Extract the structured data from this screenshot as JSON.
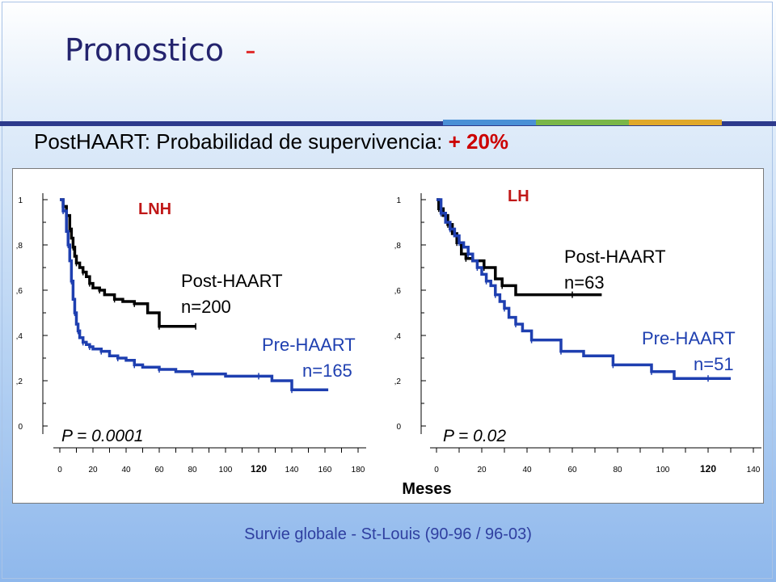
{
  "slide": {
    "title": "Pronostico",
    "title_dash": "-",
    "subtitle_main": "PostHAART: Probabilidad de supervivencia: ",
    "subtitle_highlight": "+ 20%",
    "caption": "Survie globale - St-Louis (90-96 / 96-03)",
    "xlabel": "Meses",
    "colors": {
      "title": "#24246e",
      "rule": "#2d3a8c",
      "accents": [
        "#4a90d6",
        "#7ab648",
        "#e0a82a"
      ],
      "post_haart": "#000000",
      "pre_haart": "#1e3fb0",
      "panel_label": "#c01818",
      "caption": "#2f3fa0"
    }
  },
  "chart_data": [
    {
      "type": "line",
      "step": true,
      "panel_label": "LNH",
      "p_value": "P = 0.0001",
      "xlabel": "Meses",
      "ylabel": "",
      "xlim": [
        0,
        180
      ],
      "ylim": [
        0,
        1
      ],
      "x_ticks": [
        "0",
        "20",
        "40",
        "60",
        "80",
        "100",
        "120",
        "140",
        "160",
        "180"
      ],
      "y_ticks": [
        "0",
        ",2",
        ",4",
        ",6",
        ",8",
        "1"
      ],
      "series": [
        {
          "name": "Post-HAART",
          "label_lines": [
            "Post-HAART",
            "n=200"
          ],
          "color": "#000000",
          "x": [
            0,
            2,
            4,
            6,
            7,
            8,
            9,
            10,
            12,
            14,
            16,
            18,
            20,
            24,
            27,
            33,
            38,
            45,
            53,
            60,
            70,
            82
          ],
          "y": [
            1,
            0.97,
            0.93,
            0.87,
            0.83,
            0.79,
            0.75,
            0.72,
            0.7,
            0.68,
            0.66,
            0.63,
            0.61,
            0.6,
            0.58,
            0.56,
            0.55,
            0.54,
            0.5,
            0.44,
            0.44,
            0.44
          ]
        },
        {
          "name": "Pre-HAART",
          "label_lines": [
            "Pre-HAART",
            "n=165"
          ],
          "color": "#1e3fb0",
          "x": [
            0,
            2,
            4,
            5,
            6,
            7,
            8,
            9,
            10,
            11,
            12,
            14,
            16,
            18,
            20,
            25,
            30,
            35,
            40,
            45,
            50,
            60,
            70,
            80,
            100,
            120,
            128,
            140,
            162
          ],
          "y": [
            1,
            0.95,
            0.86,
            0.8,
            0.73,
            0.64,
            0.56,
            0.5,
            0.45,
            0.42,
            0.39,
            0.37,
            0.36,
            0.35,
            0.34,
            0.33,
            0.31,
            0.3,
            0.29,
            0.27,
            0.26,
            0.25,
            0.24,
            0.23,
            0.22,
            0.22,
            0.2,
            0.16,
            0.16
          ]
        }
      ]
    },
    {
      "type": "line",
      "step": true,
      "panel_label": "LH",
      "p_value": "P = 0.02",
      "xlabel": "Meses",
      "ylabel": "",
      "xlim": [
        0,
        140
      ],
      "ylim": [
        0,
        1
      ],
      "x_ticks": [
        "0",
        "20",
        "40",
        "60",
        "80",
        "100",
        "120",
        "140"
      ],
      "y_ticks": [
        "0",
        ",2",
        ",4",
        ",6",
        ",8",
        "1"
      ],
      "series": [
        {
          "name": "Post-HAART",
          "label_lines": [
            "Post-HAART",
            "n=63"
          ],
          "color": "#000000",
          "x": [
            0,
            1,
            3,
            5,
            7,
            9,
            11,
            13,
            16,
            21,
            26,
            29,
            35,
            60,
            73
          ],
          "y": [
            1,
            0.96,
            0.93,
            0.89,
            0.85,
            0.81,
            0.76,
            0.74,
            0.73,
            0.7,
            0.65,
            0.62,
            0.58,
            0.58,
            0.58
          ]
        },
        {
          "name": "Pre-HAART",
          "label_lines": [
            "Pre-HAART",
            "n=51"
          ],
          "color": "#1e3fb0",
          "x": [
            0,
            2,
            4,
            6,
            8,
            10,
            12,
            14,
            16,
            18,
            20,
            22,
            24,
            26,
            28,
            30,
            32,
            35,
            38,
            42,
            48,
            55,
            65,
            78,
            85,
            95,
            105,
            120,
            130
          ],
          "y": [
            1,
            0.94,
            0.9,
            0.87,
            0.84,
            0.81,
            0.79,
            0.76,
            0.73,
            0.7,
            0.67,
            0.64,
            0.62,
            0.58,
            0.55,
            0.52,
            0.48,
            0.45,
            0.42,
            0.38,
            0.38,
            0.33,
            0.31,
            0.27,
            0.27,
            0.24,
            0.21,
            0.21,
            0.21
          ]
        }
      ]
    }
  ]
}
